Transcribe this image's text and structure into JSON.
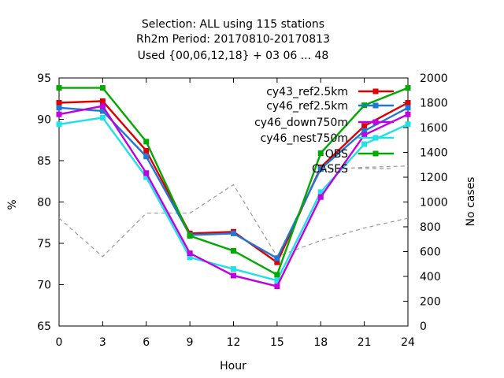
{
  "chart_data": {
    "type": "line",
    "title_lines": [
      "Selection: ALL using   115 stations",
      "Rh2m   Period: 20170810-20170813",
      "Used {00,06,12,18} + 03 06 ... 48"
    ],
    "xlabel": "Hour",
    "ylabel": "%",
    "y2label": "No cases",
    "x": [
      0,
      3,
      6,
      9,
      12,
      15,
      18,
      21,
      24
    ],
    "xticks": [
      "0",
      "3",
      "6",
      "9",
      "12",
      "15",
      "18",
      "21",
      "24"
    ],
    "ylim": [
      65,
      95
    ],
    "yticks": [
      "65",
      "70",
      "75",
      "80",
      "85",
      "90",
      "95"
    ],
    "y2lim": [
      0,
      2000
    ],
    "y2ticks": [
      "0",
      "200",
      "400",
      "600",
      "800",
      "1000",
      "1200",
      "1400",
      "1600",
      "1800",
      "2000"
    ],
    "grid": false,
    "legend_position": "top-right",
    "series": [
      {
        "name": "cy43_ref2.5km",
        "color": "#dd0000",
        "marker": "square",
        "axis": "y",
        "values": [
          92.0,
          92.2,
          86.2,
          76.2,
          76.4,
          72.7,
          84.2,
          89.2,
          92.0
        ]
      },
      {
        "name": "cy46_ref2.5km",
        "color": "#1e78d7",
        "marker": "square",
        "axis": "y",
        "values": [
          91.4,
          91.0,
          85.5,
          76.0,
          76.2,
          73.2,
          84.0,
          88.6,
          91.4
        ]
      },
      {
        "name": "cy46_down750m",
        "color": "#c000e0",
        "marker": "square",
        "axis": "y",
        "values": [
          90.6,
          91.6,
          83.5,
          73.8,
          71.1,
          69.8,
          80.6,
          88.1,
          90.6
        ]
      },
      {
        "name": "cy46_nest750m",
        "color": "#20e0e8",
        "marker": "square",
        "axis": "y",
        "values": [
          89.4,
          90.2,
          83.0,
          73.3,
          71.9,
          70.5,
          81.2,
          87.0,
          89.4
        ]
      },
      {
        "name": "OBS",
        "color": "#00aa00",
        "marker": "square",
        "axis": "y",
        "values": [
          93.8,
          93.8,
          87.3,
          75.9,
          74.1,
          71.2,
          85.9,
          91.7,
          93.8
        ]
      },
      {
        "name": "CASES",
        "color": "#9a9a9a",
        "dashed": true,
        "axis": "y2",
        "values": [
          870,
          560,
          910,
          910,
          1140,
          560,
          690,
          790,
          870
        ]
      }
    ],
    "cases_secondary_line": {
      "x": [
        15,
        18,
        21,
        24
      ],
      "values": [
        560,
        1260,
        1280,
        1290
      ],
      "color": "#9a9a9a",
      "dashed": true
    }
  }
}
